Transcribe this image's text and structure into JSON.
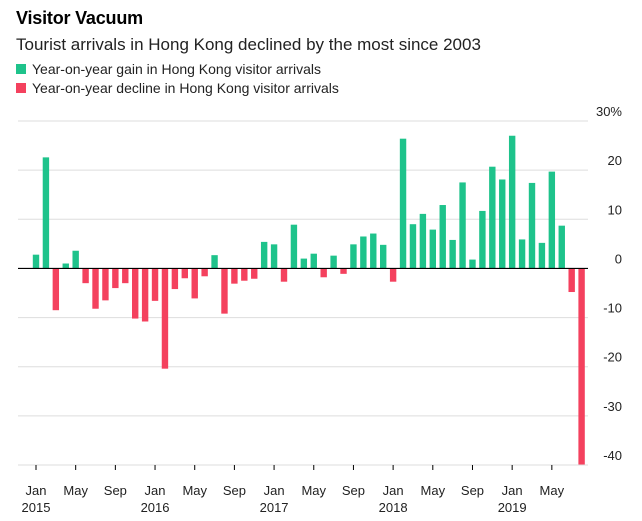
{
  "header": {
    "title": "Visitor Vacuum",
    "subtitle": "Tourist arrivals in Hong Kong declined by the most since 2003"
  },
  "legend": {
    "gain_label": "Year-on-year gain in Hong Kong visitor arrivals",
    "decline_label": "Year-on-year decline in Hong Kong visitor arrivals"
  },
  "colors": {
    "gain": "#1ec38b",
    "decline": "#f4415e",
    "grid": "#dddddd"
  },
  "chart_data": {
    "type": "bar",
    "ylabel": "",
    "xlabel": "",
    "ylim": [
      -40,
      30
    ],
    "y_ticks": [
      {
        "value": 30,
        "label": "30%"
      },
      {
        "value": 20,
        "label": "20"
      },
      {
        "value": 10,
        "label": "10"
      },
      {
        "value": 0,
        "label": "0"
      },
      {
        "value": -10,
        "label": "-10"
      },
      {
        "value": -20,
        "label": "-20"
      },
      {
        "value": -30,
        "label": "-30"
      },
      {
        "value": -40,
        "label": "-40"
      }
    ],
    "x_ticks": [
      {
        "index": 0,
        "label": "Jan",
        "year": "2015"
      },
      {
        "index": 4,
        "label": "May",
        "year": ""
      },
      {
        "index": 8,
        "label": "Sep",
        "year": ""
      },
      {
        "index": 12,
        "label": "Jan",
        "year": "2016"
      },
      {
        "index": 16,
        "label": "May",
        "year": ""
      },
      {
        "index": 20,
        "label": "Sep",
        "year": ""
      },
      {
        "index": 24,
        "label": "Jan",
        "year": "2017"
      },
      {
        "index": 28,
        "label": "May",
        "year": ""
      },
      {
        "index": 32,
        "label": "Sep",
        "year": ""
      },
      {
        "index": 36,
        "label": "Jan",
        "year": "2018"
      },
      {
        "index": 40,
        "label": "May",
        "year": ""
      },
      {
        "index": 44,
        "label": "Sep",
        "year": ""
      },
      {
        "index": 48,
        "label": "Jan",
        "year": "2019"
      },
      {
        "index": 52,
        "label": "May",
        "year": ""
      }
    ],
    "categories": [
      "2015-01",
      "2015-02",
      "2015-03",
      "2015-04",
      "2015-05",
      "2015-06",
      "2015-07",
      "2015-08",
      "2015-09",
      "2015-10",
      "2015-11",
      "2015-12",
      "2016-01",
      "2016-02",
      "2016-03",
      "2016-04",
      "2016-05",
      "2016-06",
      "2016-07",
      "2016-08",
      "2016-09",
      "2016-10",
      "2016-11",
      "2016-12",
      "2017-01",
      "2017-02",
      "2017-03",
      "2017-04",
      "2017-05",
      "2017-06",
      "2017-07",
      "2017-08",
      "2017-09",
      "2017-10",
      "2017-11",
      "2017-12",
      "2018-01",
      "2018-02",
      "2018-03",
      "2018-04",
      "2018-05",
      "2018-06",
      "2018-07",
      "2018-08",
      "2018-09",
      "2018-10",
      "2018-11",
      "2018-12",
      "2019-01",
      "2019-02",
      "2019-03",
      "2019-04",
      "2019-05",
      "2019-06",
      "2019-07",
      "2019-08"
    ],
    "values": [
      2.8,
      22.6,
      -8.5,
      1.0,
      3.6,
      -3.0,
      -8.2,
      -6.5,
      -4.0,
      -3.0,
      -10.2,
      -10.8,
      -6.6,
      -20.4,
      -4.2,
      -2.0,
      -6.1,
      -1.6,
      2.7,
      -9.2,
      -3.1,
      -2.5,
      -2.1,
      5.4,
      4.9,
      -2.7,
      8.9,
      2.0,
      3.0,
      -1.8,
      2.6,
      -1.1,
      4.9,
      6.5,
      7.1,
      4.8,
      -2.7,
      26.4,
      9.0,
      11.1,
      7.9,
      12.9,
      5.8,
      17.5,
      1.8,
      11.7,
      20.7,
      18.1,
      27.0,
      5.9,
      17.4,
      5.2,
      19.7,
      8.7,
      -4.8,
      -39.9
    ]
  }
}
